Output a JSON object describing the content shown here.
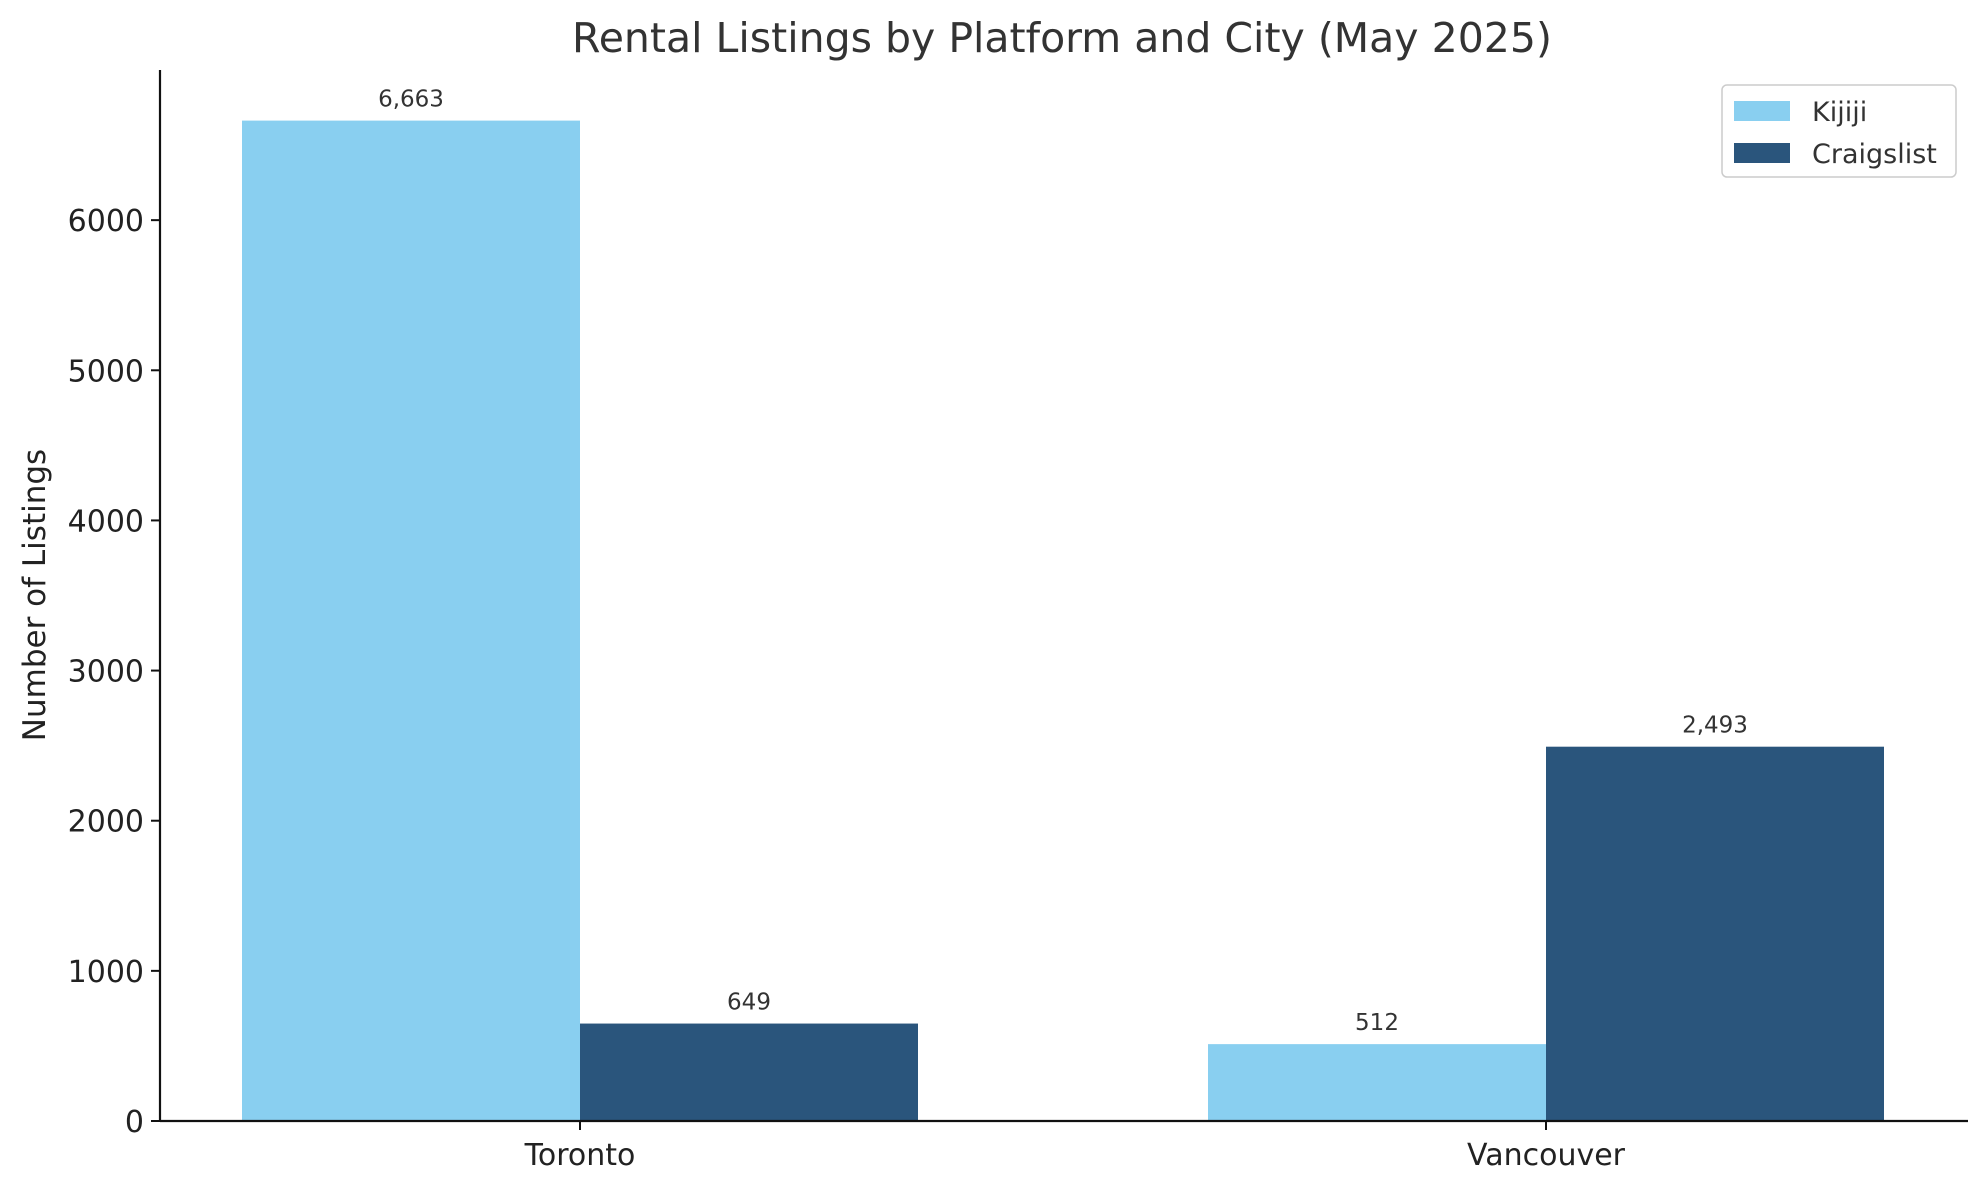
{
  "chart_data": {
    "type": "bar",
    "title": "Rental Listings by Platform and City (May 2025)",
    "xlabel": "",
    "ylabel": "Number of Listings",
    "categories": [
      "Toronto",
      "Vancouver"
    ],
    "series": [
      {
        "name": "Kijiji",
        "values": [
          6663,
          512
        ],
        "labels": [
          "6,663",
          "512"
        ],
        "color": "#89CFF0"
      },
      {
        "name": "Craigslist",
        "values": [
          649,
          2493
        ],
        "labels": [
          "649",
          "2,493"
        ],
        "color": "#2A557C"
      }
    ],
    "ylim": [
      0,
      7000
    ],
    "yticks": [
      0,
      1000,
      2000,
      3000,
      4000,
      5000,
      6000
    ],
    "grid": false,
    "legend_position": "top-right"
  }
}
